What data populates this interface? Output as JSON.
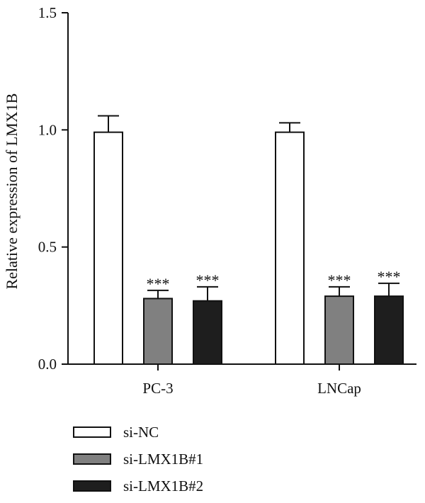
{
  "chart_data": {
    "type": "bar",
    "categories": [
      "PC-3",
      "LNCap"
    ],
    "ylabel": "Relative expression of LMX1B",
    "xlabel": "",
    "ylim": [
      0,
      1.5
    ],
    "yticks": [
      "0.0",
      "0.5",
      "1.0",
      "1.5"
    ],
    "grid": false,
    "legend_position": "bottom-left",
    "series": [
      {
        "name": "si-NC",
        "values": [
          0.99,
          0.99
        ],
        "errors": [
          0.07,
          0.04
        ],
        "significance": [
          "",
          ""
        ],
        "color": "#ffffff"
      },
      {
        "name": "si-LMX1B#1",
        "values": [
          0.28,
          0.29
        ],
        "errors": [
          0.035,
          0.04
        ],
        "significance": [
          "***",
          "***"
        ],
        "color": "#808080"
      },
      {
        "name": "si-LMX1B#2",
        "values": [
          0.27,
          0.29
        ],
        "errors": [
          0.06,
          0.055
        ],
        "significance": [
          "***",
          "***"
        ],
        "color": "#1e1e1e"
      }
    ]
  }
}
